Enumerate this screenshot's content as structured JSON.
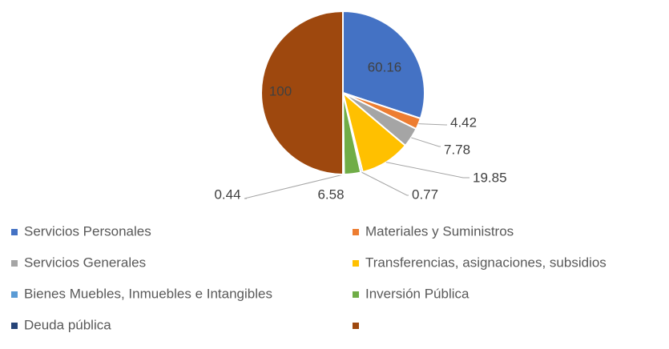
{
  "chart_data": {
    "type": "pie",
    "categories": [
      "Servicios Personales",
      "Materiales y Suministros",
      "Servicios Generales",
      "Transferencias, asignaciones, subsidios",
      "Bienes Muebles, Inmuebles e Intangibles",
      "Inversión Pública",
      "Deuda pública",
      null
    ],
    "values": [
      60.16,
      4.42,
      7.78,
      19.85,
      0.77,
      6.58,
      0.44,
      100
    ],
    "colors": [
      "#4472c4",
      "#ed7d31",
      "#a5a5a5",
      "#ffc000",
      "#5b9bd5",
      "#70ad47",
      "#264478",
      "#9e480e"
    ],
    "legend": "bottom"
  }
}
